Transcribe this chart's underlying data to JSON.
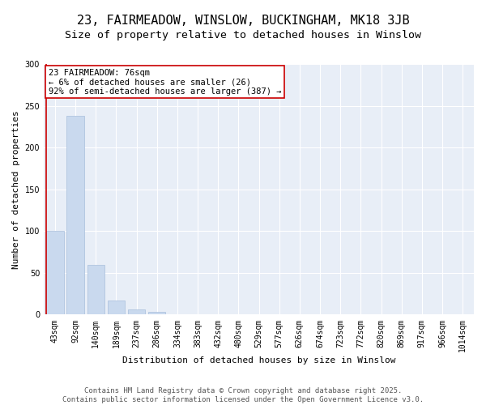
{
  "title": "23, FAIRMEADOW, WINSLOW, BUCKINGHAM, MK18 3JB",
  "subtitle": "Size of property relative to detached houses in Winslow",
  "xlabel": "Distribution of detached houses by size in Winslow",
  "ylabel": "Number of detached properties",
  "categories": [
    "43sqm",
    "92sqm",
    "140sqm",
    "189sqm",
    "237sqm",
    "286sqm",
    "334sqm",
    "383sqm",
    "432sqm",
    "480sqm",
    "529sqm",
    "577sqm",
    "626sqm",
    "674sqm",
    "723sqm",
    "772sqm",
    "820sqm",
    "869sqm",
    "917sqm",
    "966sqm",
    "1014sqm"
  ],
  "values": [
    100,
    238,
    60,
    17,
    6,
    3,
    0,
    0,
    0,
    0,
    0,
    0,
    0,
    0,
    0,
    0,
    0,
    0,
    0,
    0,
    0
  ],
  "bar_color": "#c9d9ee",
  "bar_edge_color": "#a8bedc",
  "highlight_line_color": "#cc0000",
  "annotation_text": "23 FAIRMEADOW: 76sqm\n← 6% of detached houses are smaller (26)\n92% of semi-detached houses are larger (387) →",
  "annotation_box_color": "#ffffff",
  "annotation_box_edge_color": "#cc0000",
  "ylim": [
    0,
    300
  ],
  "yticks": [
    0,
    50,
    100,
    150,
    200,
    250,
    300
  ],
  "background_color": "#e8eef7",
  "footer_text": "Contains HM Land Registry data © Crown copyright and database right 2025.\nContains public sector information licensed under the Open Government Licence v3.0.",
  "title_fontsize": 11,
  "subtitle_fontsize": 9.5,
  "axis_label_fontsize": 8,
  "tick_fontsize": 7,
  "annotation_fontsize": 7.5,
  "footer_fontsize": 6.5
}
